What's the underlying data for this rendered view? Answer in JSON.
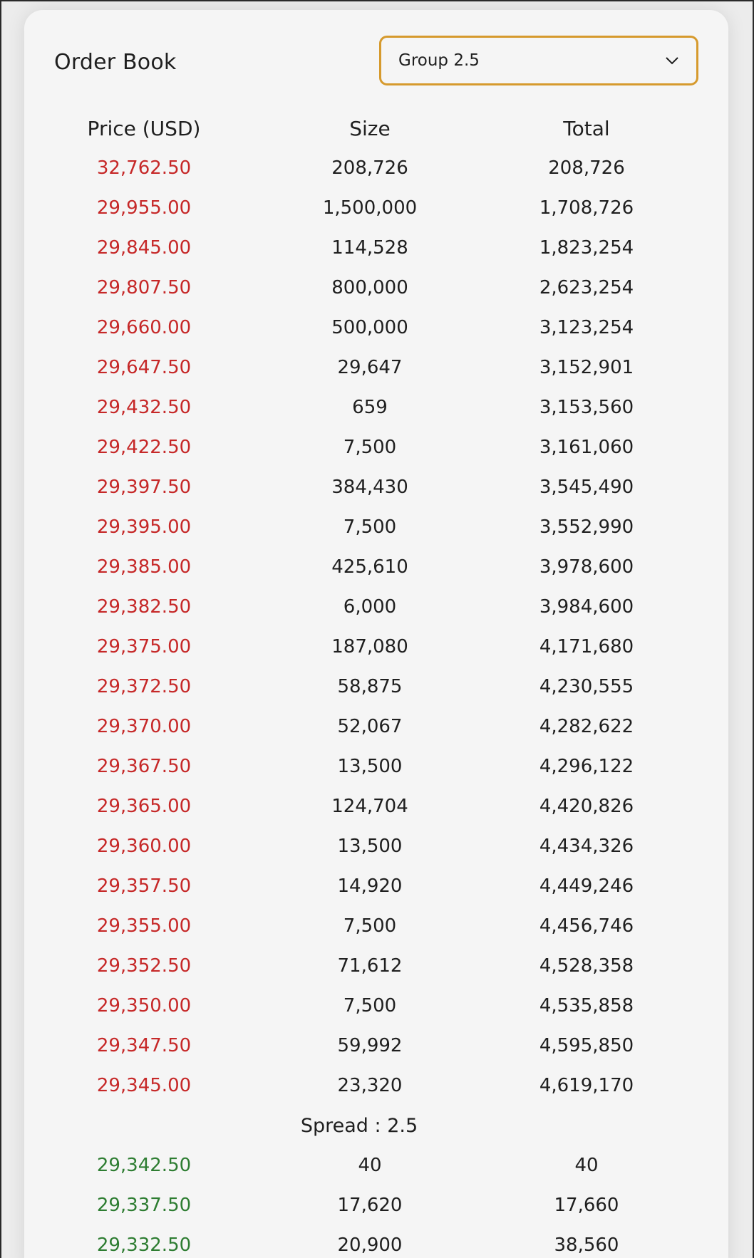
{
  "title": "Order Book",
  "group_select": {
    "value": "Group 2.5"
  },
  "columns": [
    "Price (USD)",
    "Size",
    "Total"
  ],
  "asks": [
    {
      "price": "32,762.50",
      "size": "208,726",
      "total": "208,726"
    },
    {
      "price": "29,955.00",
      "size": "1,500,000",
      "total": "1,708,726"
    },
    {
      "price": "29,845.00",
      "size": "114,528",
      "total": "1,823,254"
    },
    {
      "price": "29,807.50",
      "size": "800,000",
      "total": "2,623,254"
    },
    {
      "price": "29,660.00",
      "size": "500,000",
      "total": "3,123,254"
    },
    {
      "price": "29,647.50",
      "size": "29,647",
      "total": "3,152,901"
    },
    {
      "price": "29,432.50",
      "size": "659",
      "total": "3,153,560"
    },
    {
      "price": "29,422.50",
      "size": "7,500",
      "total": "3,161,060"
    },
    {
      "price": "29,397.50",
      "size": "384,430",
      "total": "3,545,490"
    },
    {
      "price": "29,395.00",
      "size": "7,500",
      "total": "3,552,990"
    },
    {
      "price": "29,385.00",
      "size": "425,610",
      "total": "3,978,600"
    },
    {
      "price": "29,382.50",
      "size": "6,000",
      "total": "3,984,600"
    },
    {
      "price": "29,375.00",
      "size": "187,080",
      "total": "4,171,680"
    },
    {
      "price": "29,372.50",
      "size": "58,875",
      "total": "4,230,555"
    },
    {
      "price": "29,370.00",
      "size": "52,067",
      "total": "4,282,622"
    },
    {
      "price": "29,367.50",
      "size": "13,500",
      "total": "4,296,122"
    },
    {
      "price": "29,365.00",
      "size": "124,704",
      "total": "4,420,826"
    },
    {
      "price": "29,360.00",
      "size": "13,500",
      "total": "4,434,326"
    },
    {
      "price": "29,357.50",
      "size": "14,920",
      "total": "4,449,246"
    },
    {
      "price": "29,355.00",
      "size": "7,500",
      "total": "4,456,746"
    },
    {
      "price": "29,352.50",
      "size": "71,612",
      "total": "4,528,358"
    },
    {
      "price": "29,350.00",
      "size": "7,500",
      "total": "4,535,858"
    },
    {
      "price": "29,347.50",
      "size": "59,992",
      "total": "4,595,850"
    },
    {
      "price": "29,345.00",
      "size": "23,320",
      "total": "4,619,170"
    }
  ],
  "spread_label": "Spread : 2.5",
  "bids": [
    {
      "price": "29,342.50",
      "size": "40",
      "total": "40"
    },
    {
      "price": "29,337.50",
      "size": "17,620",
      "total": "17,660"
    },
    {
      "price": "29,332.50",
      "size": "20,900",
      "total": "38,560"
    }
  ],
  "colors": {
    "ask": "#c62828",
    "bid": "#2e7d32",
    "accent": "#d69a2d"
  },
  "icons": {
    "select_arrow": "chevron-down-icon"
  }
}
